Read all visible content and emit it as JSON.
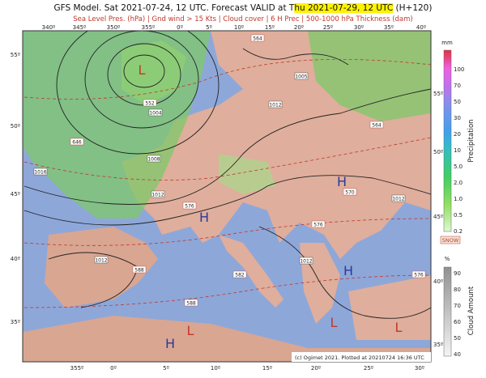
{
  "header": {
    "title_prefix": "GFS Model. Sat 2021-07-24, 12 UTC. Forecast VALID at T",
    "title_highlight": "hu 2021-07-29, 12 UTC",
    "title_suffix": " (H+120)",
    "subtitle": "Sea Level Pres. (hPa) | Gnd wind > 15 Kts | Cloud cover | 6 H Prec | 500-1000 hPa Thickness (dam)"
  },
  "axes": {
    "top_lon": [
      "340º",
      "345º",
      "350º",
      "355º",
      "0º",
      "5º",
      "10º",
      "15º",
      "20º",
      "25º",
      "30º",
      "35º",
      "40º"
    ],
    "bottom_lon": [
      "355º",
      "0º",
      "5º",
      "10º",
      "15º",
      "20º",
      "25º",
      "30º"
    ],
    "left_lat": [
      "55º",
      "50º",
      "45º",
      "40º",
      "35º"
    ],
    "right_lat": [
      "55º",
      "50º",
      "45º",
      "40º",
      "35º"
    ]
  },
  "map": {
    "labels": [
      "552",
      "1004",
      "1008",
      "1012",
      "1016",
      "1012",
      "1005",
      "564",
      "564",
      "570",
      "576",
      "576",
      "582",
      "588",
      "588",
      "1012",
      "1012",
      "1012",
      "576",
      "646"
    ],
    "highs_lows": [
      "L",
      "H",
      "H",
      "H",
      "L",
      "L",
      "H",
      "L"
    ],
    "credit": "(c) Ogimet 2021. Plotted at 20210724 16:36 UTC"
  },
  "precip_bar": {
    "unit": "mm",
    "ticks": [
      "100",
      "70",
      "50",
      "30",
      "20",
      "10",
      "5.0",
      "2.0",
      "1.0",
      "0.5",
      "0.2"
    ],
    "title": "Precipitation",
    "snow": "SNOW"
  },
  "cloud_bar": {
    "unit": "%",
    "ticks": [
      "90",
      "80",
      "70",
      "60",
      "50",
      "40"
    ],
    "title": "Cloud Amount"
  }
}
